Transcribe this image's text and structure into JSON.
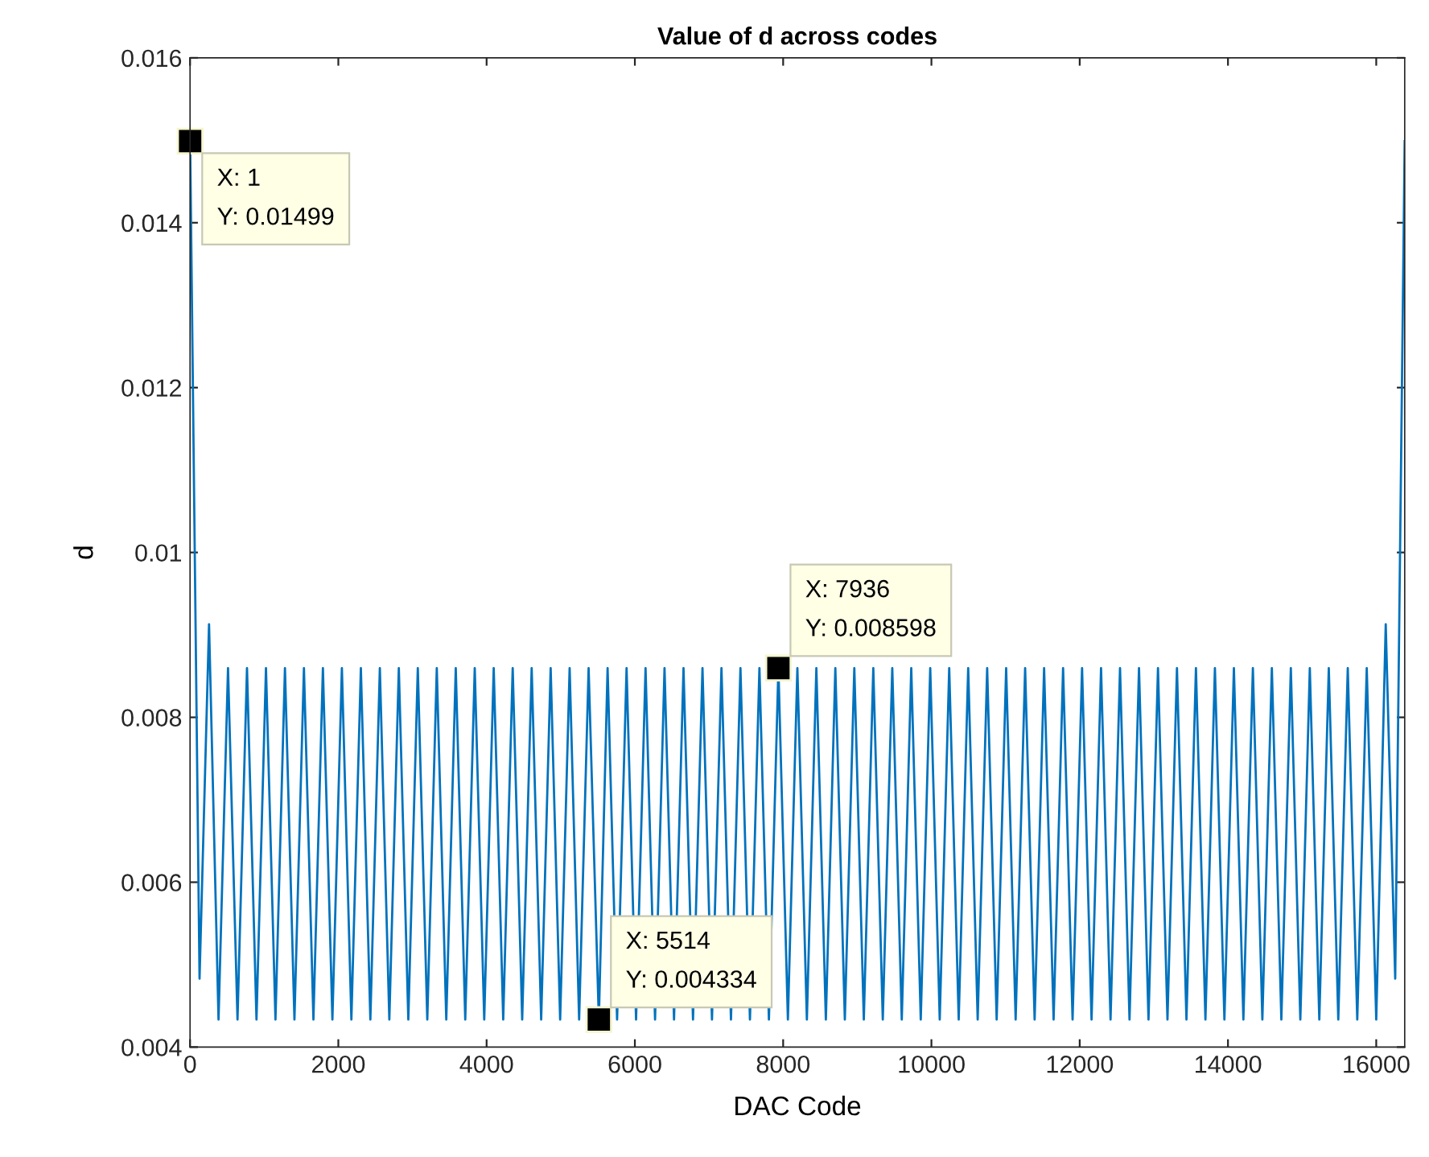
{
  "chart_data": {
    "type": "line",
    "title": "Value of d across codes",
    "xlabel": "DAC Code",
    "ylabel": "d",
    "xlim": [
      0,
      16384
    ],
    "xticks": [
      0,
      2000,
      4000,
      6000,
      8000,
      10000,
      12000,
      14000,
      16000
    ],
    "ylim": [
      0.004,
      0.016
    ],
    "yticks": [
      0.004,
      0.006,
      0.008,
      0.01,
      0.012,
      0.014,
      0.016
    ],
    "grid": false,
    "marker": "none",
    "line_style": "solid",
    "annotations": [
      {
        "text": "X: 1\nY: 0.01499",
        "x": 1,
        "y": 0.01499
      },
      {
        "text": "X: 7936\nY: 0.008598",
        "x": 7936,
        "y": 0.008598
      },
      {
        "text": "X: 5514\nY: 0.004334",
        "x": 5514,
        "y": 0.004334
      }
    ],
    "series": [
      {
        "color": "#0072bd",
        "x": [
          1,
          128,
          256,
          384,
          512,
          640,
          768,
          896,
          1024,
          1152,
          1280,
          1408,
          1536,
          1664,
          1792,
          1920,
          2048,
          2176,
          2304,
          2432,
          2560,
          2688,
          2816,
          2944,
          3072,
          3200,
          3328,
          3456,
          3584,
          3712,
          3840,
          3968,
          4096,
          4224,
          4352,
          4480,
          4608,
          4736,
          4864,
          4992,
          5120,
          5248,
          5376,
          5514,
          5632,
          5760,
          5888,
          6016,
          6144,
          6272,
          6400,
          6528,
          6656,
          6784,
          6912,
          7040,
          7168,
          7296,
          7424,
          7552,
          7680,
          7808,
          7936,
          8064,
          8192,
          8320,
          8448,
          8576,
          8704,
          8832,
          8960,
          9088,
          9216,
          9344,
          9472,
          9600,
          9728,
          9856,
          9984,
          10112,
          10240,
          10368,
          10496,
          10624,
          10752,
          10880,
          11008,
          11136,
          11264,
          11392,
          11520,
          11648,
          11776,
          11904,
          12032,
          12160,
          12288,
          12416,
          12544,
          12672,
          12800,
          12928,
          13056,
          13184,
          13312,
          13440,
          13568,
          13696,
          13824,
          13952,
          14080,
          14208,
          14336,
          14464,
          14592,
          14720,
          14848,
          14976,
          15104,
          15232,
          15360,
          15488,
          15616,
          15744,
          15872,
          16000,
          16128,
          16256,
          16384
        ],
        "values": [
          0.01499,
          0.00483,
          0.00913,
          0.004334,
          0.008598,
          0.004334,
          0.008598,
          0.004334,
          0.008598,
          0.004334,
          0.008598,
          0.004334,
          0.008598,
          0.004334,
          0.008598,
          0.004334,
          0.008598,
          0.004334,
          0.008598,
          0.004334,
          0.008598,
          0.004334,
          0.008598,
          0.004334,
          0.008598,
          0.004334,
          0.008598,
          0.004334,
          0.008598,
          0.004334,
          0.008598,
          0.004334,
          0.008598,
          0.004334,
          0.008598,
          0.004334,
          0.008598,
          0.004334,
          0.008598,
          0.004334,
          0.008598,
          0.004334,
          0.008598,
          0.004334,
          0.008598,
          0.004334,
          0.008598,
          0.004334,
          0.008598,
          0.004334,
          0.008598,
          0.004334,
          0.008598,
          0.004334,
          0.008598,
          0.004334,
          0.008598,
          0.004334,
          0.008598,
          0.004334,
          0.008598,
          0.004334,
          0.008598,
          0.004334,
          0.008598,
          0.004334,
          0.008598,
          0.004334,
          0.008598,
          0.004334,
          0.008598,
          0.004334,
          0.008598,
          0.004334,
          0.008598,
          0.004334,
          0.008598,
          0.004334,
          0.008598,
          0.004334,
          0.008598,
          0.004334,
          0.008598,
          0.004334,
          0.008598,
          0.004334,
          0.008598,
          0.004334,
          0.008598,
          0.004334,
          0.008598,
          0.004334,
          0.008598,
          0.004334,
          0.008598,
          0.004334,
          0.008598,
          0.004334,
          0.008598,
          0.004334,
          0.008598,
          0.004334,
          0.008598,
          0.004334,
          0.008598,
          0.004334,
          0.008598,
          0.004334,
          0.008598,
          0.004334,
          0.008598,
          0.004334,
          0.008598,
          0.004334,
          0.008598,
          0.004334,
          0.008598,
          0.004334,
          0.008598,
          0.004334,
          0.008598,
          0.004334,
          0.008598,
          0.004334,
          0.008598,
          0.004334,
          0.00913,
          0.00483,
          0.01499
        ]
      }
    ]
  }
}
